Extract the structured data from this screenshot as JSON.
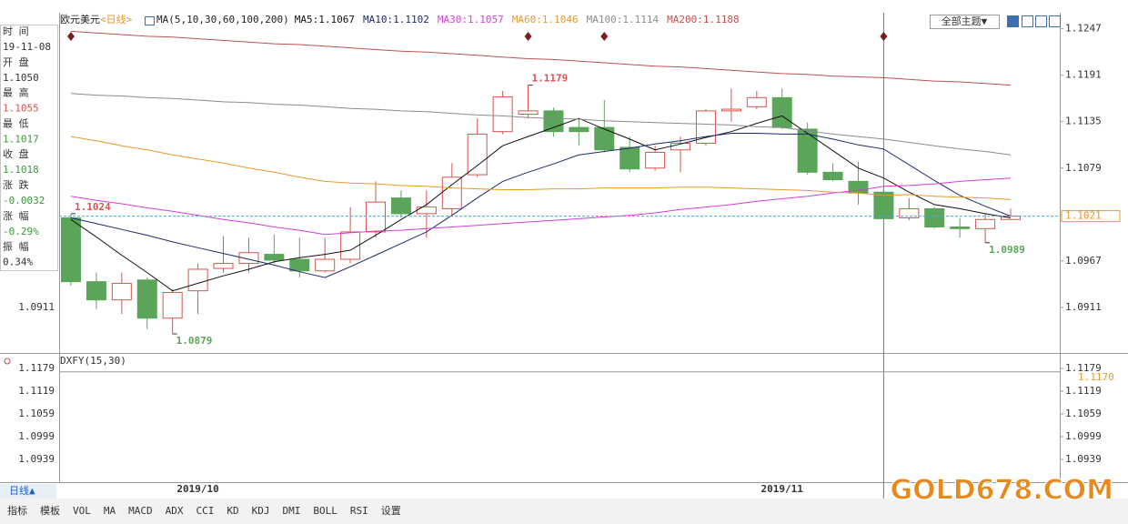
{
  "header": {
    "symbol": "欧元美元",
    "period": "<日线>",
    "indicator": "MA(5,10,30,60,100,200)",
    "theme_button": "全部主题▼"
  },
  "info_panel": {
    "rows": [
      {
        "label": "时 间",
        "value": "19-11-08",
        "color": "#333333"
      },
      {
        "label": "开 盘",
        "value": "1.1050",
        "color": "#333333"
      },
      {
        "label": "最 高",
        "value": "1.1055",
        "color": "#d9534f"
      },
      {
        "label": "最 低",
        "value": "1.1017",
        "color": "#3a9a3a"
      },
      {
        "label": "收 盘",
        "value": "1.1018",
        "color": "#3a9a3a"
      },
      {
        "label": "涨 跌",
        "value": "-0.0032",
        "color": "#3a9a3a"
      },
      {
        "label": "涨 幅",
        "value": "-0.29%",
        "color": "#3a9a3a"
      },
      {
        "label": "振 幅",
        "value": "0.34%",
        "color": "#333333"
      }
    ]
  },
  "chart_data": [
    {
      "type": "candlestick",
      "categories": [
        null,
        null,
        null,
        null,
        null,
        "2019/10",
        null,
        null,
        null,
        null,
        null,
        null,
        null,
        null,
        null,
        null,
        null,
        null,
        null,
        null,
        null,
        null,
        null,
        null,
        null,
        null,
        null,
        null,
        "2019/11",
        null,
        null,
        null,
        null,
        null,
        null,
        null,
        null,
        null
      ],
      "open": [
        1.1019,
        1.0942,
        1.092,
        1.0944,
        1.0898,
        1.0931,
        1.0958,
        1.0964,
        1.0975,
        1.0969,
        1.0955,
        1.0969,
        1.1002,
        1.1043,
        1.1024,
        1.103,
        1.1071,
        1.1123,
        1.1144,
        1.1148,
        1.1128,
        1.1128,
        1.1104,
        1.1079,
        1.1101,
        1.1109,
        1.1148,
        1.1153,
        1.1164,
        1.1126,
        1.1074,
        1.1063,
        1.105,
        1.1019,
        1.103,
        1.1008,
        1.1006,
        1.1017
      ],
      "high": [
        1.1024,
        1.0953,
        1.0953,
        1.0947,
        1.0933,
        1.0964,
        1.0997,
        1.0995,
        1.0999,
        1.0995,
        1.0995,
        1.1032,
        1.1063,
        1.1052,
        1.1052,
        1.1085,
        1.1139,
        1.1172,
        1.1179,
        1.1152,
        1.1139,
        1.1161,
        1.1117,
        1.1106,
        1.1117,
        1.115,
        1.1175,
        1.1172,
        1.1175,
        1.1134,
        1.1085,
        1.1087,
        1.1055,
        1.1043,
        1.1032,
        1.1019,
        1.1024,
        1.103
      ],
      "low": [
        1.0937,
        1.0909,
        1.0903,
        1.0885,
        1.0879,
        1.0903,
        1.0953,
        1.0953,
        1.0964,
        1.0947,
        1.0953,
        1.0964,
        1.0995,
        1.1019,
        1.0995,
        1.1021,
        1.1068,
        1.112,
        1.1139,
        1.1117,
        1.1106,
        1.1098,
        1.1074,
        1.1076,
        1.1074,
        1.1106,
        1.1135,
        1.115,
        1.1126,
        1.1071,
        1.1063,
        1.1035,
        1.1017,
        1.1016,
        1.1006,
        1.0995,
        1.0989,
        1.1016
      ],
      "close": [
        1.0942,
        1.092,
        1.094,
        1.0898,
        1.0929,
        1.0957,
        1.0964,
        1.0977,
        1.0968,
        1.0955,
        1.0969,
        1.1002,
        1.1038,
        1.1024,
        1.1032,
        1.1068,
        1.112,
        1.1165,
        1.1148,
        1.1123,
        1.1123,
        1.1101,
        1.1078,
        1.1098,
        1.1109,
        1.1148,
        1.115,
        1.1164,
        1.1128,
        1.1074,
        1.1065,
        1.1049,
        1.1018,
        1.103,
        1.1008,
        1.1006,
        1.1017,
        1.1021
      ],
      "up_color": "#d9534f",
      "down_color": "#5aa55a",
      "price_line_color": "#4aa8e8",
      "series": [
        {
          "name": "MA5:",
          "color": "#111111",
          "values": [
            1.1017,
            1.0996,
            1.0974,
            1.0953,
            1.0931,
            1.094,
            1.0949,
            1.0957,
            1.0966,
            1.0971,
            1.0975,
            1.098,
            1.0998,
            1.1017,
            1.1035,
            1.1059,
            1.1082,
            1.1106,
            1.1117,
            1.1128,
            1.1139,
            1.1126,
            1.1114,
            1.1101,
            1.1108,
            1.1116,
            1.1123,
            1.1133,
            1.1142,
            1.1121,
            1.11,
            1.1079,
            1.1067,
            1.105,
            1.1035,
            1.103,
            1.1024,
            1.1019
          ]
        },
        {
          "name": "MA10:",
          "color": "#1f2a6b",
          "values": [
            1.1019,
            1.1012,
            1.1005,
            1.0998,
            1.099,
            1.0983,
            1.0976,
            1.0969,
            1.0962,
            1.0954,
            1.0947,
            1.096,
            1.0974,
            1.0988,
            1.1002,
            1.1022,
            1.1043,
            1.1063,
            1.1074,
            1.1084,
            1.1095,
            1.1099,
            1.1103,
            1.1108,
            1.1112,
            1.1117,
            1.1121,
            1.1121,
            1.112,
            1.112,
            1.1114,
            1.1107,
            1.1102,
            1.1083,
            1.1064,
            1.1046,
            1.1033,
            1.1021
          ]
        },
        {
          "name": "MA30:",
          "color": "#d63fd6",
          "values": [
            1.1045,
            1.104,
            1.1036,
            1.1031,
            1.1027,
            1.1022,
            1.1017,
            1.1013,
            1.1008,
            1.1004,
            1.0999,
            1.1001,
            1.1003,
            1.1004,
            1.1006,
            1.1008,
            1.101,
            1.1012,
            1.1014,
            1.1016,
            1.1018,
            1.102,
            1.1022,
            1.1025,
            1.1029,
            1.1032,
            1.1035,
            1.1039,
            1.1042,
            1.1045,
            1.1049,
            1.1052,
            1.1057,
            1.1058,
            1.106,
            1.1063,
            1.1065,
            1.1067
          ]
        },
        {
          "name": "MA60:",
          "color": "#e6992e",
          "values": [
            1.1117,
            1.1112,
            1.1106,
            1.1101,
            1.1095,
            1.109,
            1.1085,
            1.1079,
            1.1074,
            1.1068,
            1.1063,
            1.1061,
            1.106,
            1.1058,
            1.1057,
            1.1055,
            1.1054,
            1.1053,
            1.1053,
            1.1054,
            1.1054,
            1.1055,
            1.1055,
            1.1055,
            1.1056,
            1.1056,
            1.1055,
            1.1054,
            1.1053,
            1.1052,
            1.105,
            1.1049,
            1.1046,
            1.1047,
            1.1045,
            1.1044,
            1.1043,
            1.1041
          ]
        },
        {
          "name": "MA100:",
          "color": "#8c8c8c",
          "values": [
            1.1169,
            1.1167,
            1.1166,
            1.1164,
            1.1163,
            1.1161,
            1.1159,
            1.1158,
            1.1156,
            1.1155,
            1.1153,
            1.1151,
            1.115,
            1.1148,
            1.1147,
            1.1145,
            1.1143,
            1.1142,
            1.114,
            1.1139,
            1.1138,
            1.1136,
            1.1135,
            1.1134,
            1.1133,
            1.1132,
            1.1131,
            1.1129,
            1.1128,
            1.1124,
            1.112,
            1.1117,
            1.1114,
            1.111,
            1.1106,
            1.1102,
            1.1099,
            1.1095
          ]
        },
        {
          "name": "MA200:",
          "color": "#c0504d",
          "values": [
            1.1244,
            1.1242,
            1.124,
            1.1238,
            1.1237,
            1.1235,
            1.1233,
            1.1231,
            1.1229,
            1.1228,
            1.1226,
            1.1224,
            1.1222,
            1.122,
            1.1219,
            1.1217,
            1.1215,
            1.1213,
            1.1211,
            1.121,
            1.1208,
            1.1206,
            1.1204,
            1.1202,
            1.1201,
            1.1199,
            1.1197,
            1.1195,
            1.1193,
            1.1192,
            1.119,
            1.1189,
            1.1188,
            1.1186,
            1.1184,
            1.1183,
            1.1181,
            1.1179
          ]
        }
      ],
      "ylim": [
        1.0856,
        1.1262
      ],
      "yticks": [
        1.1247,
        1.1191,
        1.1135,
        1.1079,
        1.1023,
        1.0967,
        1.0911
      ]
    },
    {
      "type": "indicator",
      "title": "DXFY(15,30)",
      "level": {
        "value": 1.117,
        "label": "1.1170"
      },
      "color": "#e6992e",
      "ylim": [
        1.0879,
        1.1215
      ],
      "yticks": [
        1.1179,
        1.1119,
        1.1059,
        1.0999,
        1.0939
      ]
    }
  ],
  "footer": {
    "period_button": "日线▲",
    "tabs": [
      "指标",
      "模板",
      "VOL",
      "MA",
      "MACD",
      "ADX",
      "CCI",
      "KD",
      "KDJ",
      "DMI",
      "BOLL",
      "RSI",
      "设置"
    ]
  },
  "watermark": "GOLD678.COM"
}
